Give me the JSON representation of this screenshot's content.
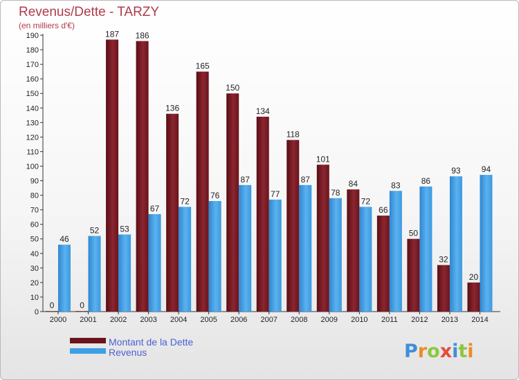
{
  "chart_data": {
    "type": "bar",
    "title": "Revenus/Dette - TARZY",
    "subtitle": "(en milliers d'€)",
    "categories": [
      "2000",
      "2001",
      "2002",
      "2003",
      "2004",
      "2005",
      "2006",
      "2007",
      "2008",
      "2009",
      "2010",
      "2011",
      "2012",
      "2013",
      "2014"
    ],
    "series": [
      {
        "name": "Montant de la Dette",
        "color": "#7a1a22",
        "values": [
          0,
          0,
          187,
          186,
          136,
          165,
          150,
          134,
          118,
          101,
          84,
          66,
          50,
          32,
          20
        ]
      },
      {
        "name": "Revenus",
        "color": "#3d9fe6",
        "values": [
          46,
          52,
          53,
          67,
          72,
          76,
          87,
          77,
          87,
          78,
          72,
          83,
          86,
          93,
          94
        ]
      }
    ],
    "ylim": [
      0,
      190
    ],
    "ytick_step": 10,
    "grid": false,
    "legend_position": "bottom-left"
  },
  "logo": {
    "letters": [
      "P",
      "r",
      "o",
      "x",
      "i",
      "t",
      "i"
    ],
    "colors": [
      "#3f8fd9",
      "#f08a24",
      "#8cc63e",
      "#e84a3a",
      "#3f8fd9",
      "#8cc63e",
      "#f08a24"
    ]
  }
}
